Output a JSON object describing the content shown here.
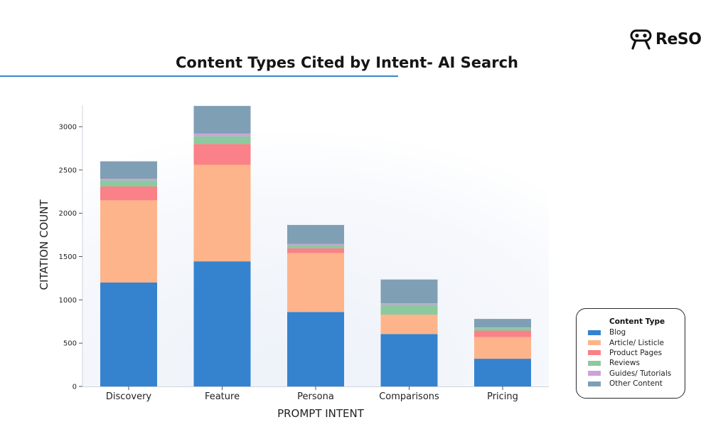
{
  "header": {
    "title": "Content Types Cited by Intent- AI Search",
    "brand_logo_text": "ReSO"
  },
  "chart_data": {
    "type": "bar",
    "stacked": true,
    "title": "Content Types Cited by Intent- AI Search",
    "xlabel": "PROMPT INTENT",
    "ylabel": "CITATION COUNT",
    "ylim": [
      0,
      3250
    ],
    "yticks": [
      0,
      500,
      1000,
      1500,
      2000,
      2500,
      3000
    ],
    "categories": [
      "Discovery",
      "Feature",
      "Persona",
      "Comparisons",
      "Pricing"
    ],
    "series": [
      {
        "name": "Blog",
        "color": "#3583cf",
        "values": [
          1200,
          1445,
          860,
          605,
          320
        ]
      },
      {
        "name": "Article/ Listicle",
        "color": "#fdb48a",
        "values": [
          950,
          1115,
          680,
          225,
          250
        ]
      },
      {
        "name": "Product Pages",
        "color": "#f98187",
        "values": [
          160,
          240,
          55,
          0,
          75
        ]
      },
      {
        "name": "Reviews",
        "color": "#8bc99f",
        "values": [
          70,
          90,
          40,
          115,
          30
        ]
      },
      {
        "name": "Guides/ Tutorials",
        "color": "#cda2da",
        "values": [
          20,
          30,
          10,
          15,
          5
        ]
      },
      {
        "name": "Other Content",
        "color": "#7f9fb4",
        "values": [
          200,
          320,
          220,
          275,
          100
        ]
      }
    ],
    "legend": {
      "title": "Content Type",
      "position": "bottom-right"
    },
    "grid": false
  }
}
